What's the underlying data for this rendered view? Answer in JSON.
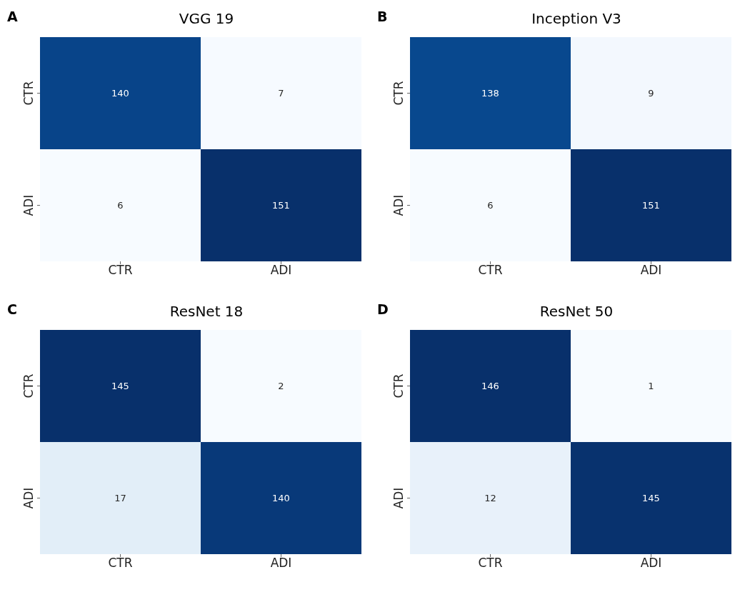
{
  "chart_data": [
    {
      "type": "heatmap",
      "title": "VGG 19",
      "annotations": [
        "A"
      ],
      "categories": [
        "CTR",
        "ADI"
      ],
      "y_categories": [
        "CTR",
        "ADI"
      ],
      "cells": [
        [
          140,
          7
        ],
        [
          6,
          151
        ]
      ],
      "data_labels": true
    },
    {
      "type": "heatmap",
      "title": "Inception V3",
      "annotations": [
        "B"
      ],
      "categories": [
        "CTR",
        "ADI"
      ],
      "y_categories": [
        "CTR",
        "ADI"
      ],
      "cells": [
        [
          138,
          9
        ],
        [
          6,
          151
        ]
      ],
      "data_labels": true
    },
    {
      "type": "heatmap",
      "title": "ResNet 18",
      "annotations": [
        "C"
      ],
      "categories": [
        "CTR",
        "ADI"
      ],
      "y_categories": [
        "CTR",
        "ADI"
      ],
      "cells": [
        [
          145,
          2
        ],
        [
          17,
          140
        ]
      ],
      "data_labels": true
    },
    {
      "type": "heatmap",
      "title": "ResNet 50",
      "annotations": [
        "D"
      ],
      "categories": [
        "CTR",
        "ADI"
      ],
      "y_categories": [
        "CTR",
        "ADI"
      ],
      "cells": [
        [
          146,
          1
        ],
        [
          12,
          145
        ]
      ],
      "data_labels": true
    }
  ]
}
